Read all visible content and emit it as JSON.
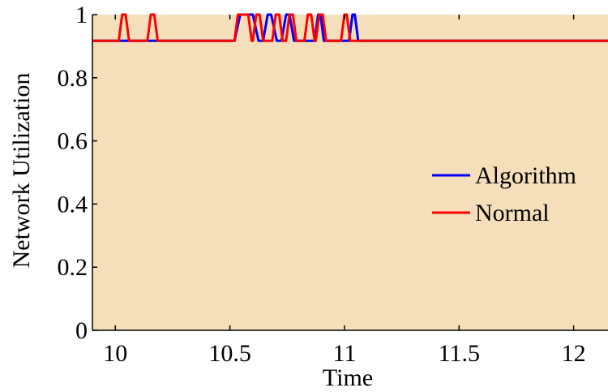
{
  "chart_data": {
    "type": "line",
    "title": "",
    "xlabel": "Time",
    "ylabel": "Network Utilization",
    "xlim": [
      9.9,
      12.15
    ],
    "ylim": [
      0,
      1
    ],
    "grid": false,
    "background_color": "#f5dfbb",
    "x_ticks": [
      10,
      10.5,
      11,
      11.5,
      12
    ],
    "x_tick_labels": [
      "10",
      "10.5",
      "11",
      "11.5",
      "12"
    ],
    "y_ticks": [
      0,
      0.2,
      0.4,
      0.6,
      0.8,
      1
    ],
    "y_tick_labels": [
      "0",
      "0.2",
      "0.4",
      "0.6",
      "0.8",
      "1"
    ],
    "legend": {
      "placement": "right",
      "entries": [
        "Algorithm",
        "Normal"
      ]
    },
    "series": [
      {
        "name": "Algorithm",
        "color": "#0000ff",
        "x": [
          9.9,
          10.52,
          10.545,
          10.6,
          10.625,
          10.645,
          10.665,
          10.68,
          10.705,
          10.725,
          10.745,
          10.76,
          10.78,
          10.87,
          10.885,
          10.895,
          10.91,
          11.02,
          11.035,
          11.045,
          11.06,
          12.15
        ],
        "y": [
          0.917,
          0.917,
          1,
          1,
          0.917,
          0.917,
          1,
          1,
          0.917,
          0.917,
          1,
          1,
          0.917,
          0.917,
          1,
          1,
          0.917,
          0.917,
          1,
          1,
          0.917,
          0.917
        ]
      },
      {
        "name": "Normal",
        "color": "#ff0000",
        "x": [
          9.9,
          10.015,
          10.03,
          10.045,
          10.06,
          10.14,
          10.155,
          10.17,
          10.185,
          10.52,
          10.535,
          10.58,
          10.595,
          10.6,
          10.615,
          10.63,
          10.645,
          10.685,
          10.7,
          10.715,
          10.73,
          10.745,
          10.76,
          10.775,
          10.79,
          10.825,
          10.84,
          10.855,
          10.87,
          10.875,
          10.89,
          10.905,
          10.92,
          10.985,
          11.0,
          11.01,
          11.025,
          12.15
        ],
        "y": [
          0.917,
          0.917,
          1,
          1,
          0.917,
          0.917,
          1,
          1,
          0.917,
          0.917,
          1,
          1,
          0.917,
          0.917,
          1,
          1,
          0.917,
          0.917,
          1,
          1,
          0.917,
          0.917,
          1,
          1,
          0.917,
          0.917,
          1,
          1,
          0.917,
          0.917,
          1,
          1,
          0.917,
          0.917,
          1,
          1,
          0.917,
          0.917
        ]
      }
    ]
  }
}
